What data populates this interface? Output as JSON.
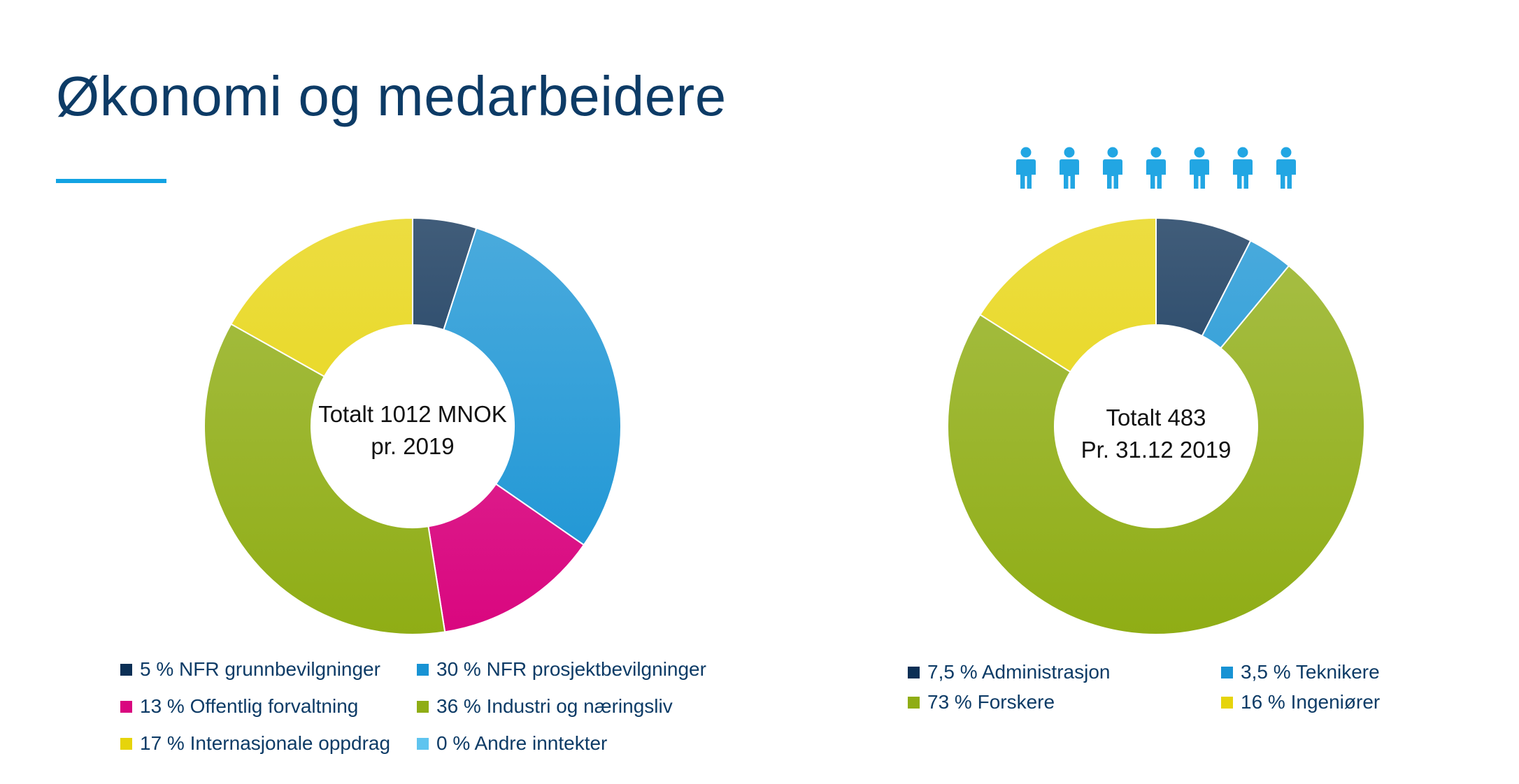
{
  "title": "Økonomi og medarbeidere",
  "accent_color": "#12a3e3",
  "icons": {
    "name": "person-icon",
    "count": 7,
    "color": "#22a6e3"
  },
  "chart_data": [
    {
      "type": "pie",
      "donut": true,
      "center_text": [
        "Totalt 1012 MNOK",
        "pr. 2019"
      ],
      "slices": [
        {
          "label": "5 % NFR grunnbevilgninger",
          "value": 5,
          "color": "#0b2f55"
        },
        {
          "label": "30 % NFR prosjektbevilgninger",
          "value": 30,
          "color": "#1893d4"
        },
        {
          "label": "13 % Offentlig forvaltning",
          "value": 13,
          "color": "#d9067f"
        },
        {
          "label": "36 % Industri og næringsliv",
          "value": 36,
          "color": "#8fad15"
        },
        {
          "label": "17 % Internasjonale oppdrag",
          "value": 17,
          "color": "#e6d40b"
        },
        {
          "label": "0 % Andre inntekter",
          "value": 0,
          "color": "#5fc4ef"
        }
      ]
    },
    {
      "type": "pie",
      "donut": true,
      "center_text": [
        "Totalt 483",
        "Pr. 31.12 2019"
      ],
      "slices": [
        {
          "label": "7,5 % Administrasjon",
          "value": 7.5,
          "color": "#0b2f55"
        },
        {
          "label": "3,5 % Teknikere",
          "value": 3.5,
          "color": "#1893d4"
        },
        {
          "label": "73 % Forskere",
          "value": 73,
          "color": "#8fad15"
        },
        {
          "label": "16 % Ingeniører",
          "value": 16,
          "color": "#e6d40b"
        }
      ]
    }
  ]
}
